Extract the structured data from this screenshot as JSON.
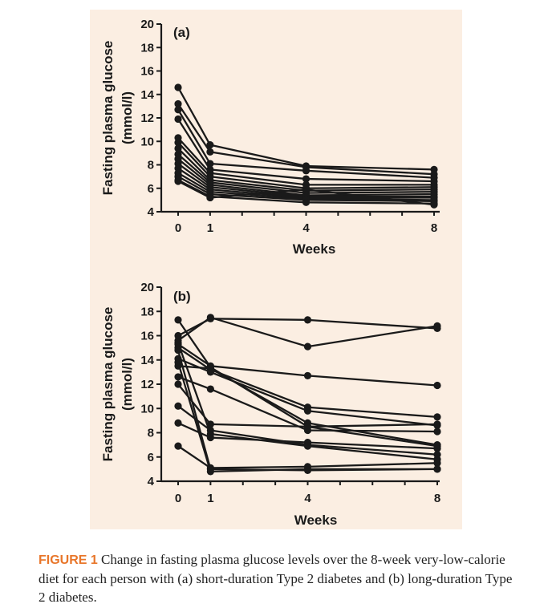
{
  "caption": {
    "label": "FIGURE 1",
    "text": "Change in fasting plasma glucose levels over the 8-week very-low-calorie diet for each person with (a) short-duration Type 2 diabetes and (b) long-duration Type 2 diabetes."
  },
  "chart_data": [
    {
      "type": "line",
      "panel_label": "(a)",
      "ylabel": [
        "Fasting plasma glucose",
        "(mmol/l)"
      ],
      "xlabel": "Weeks",
      "x": [
        0,
        1,
        4,
        8
      ],
      "xticks": [
        0,
        1,
        4,
        8
      ],
      "ylim": [
        4,
        20
      ],
      "yticks": [
        4,
        6,
        8,
        10,
        12,
        14,
        16,
        18,
        20
      ],
      "grid": false,
      "marker_color": "#1a1a1a",
      "series": [
        {
          "values": [
            14.6,
            9.7,
            7.9,
            7.6
          ]
        },
        {
          "values": [
            13.2,
            9.1,
            7.8,
            7.2
          ]
        },
        {
          "values": [
            12.7,
            8.1,
            7.5,
            6.9
          ]
        },
        {
          "values": [
            11.9,
            7.6,
            6.8,
            6.6
          ]
        },
        {
          "values": [
            10.3,
            7.3,
            6.3,
            6.3
          ]
        },
        {
          "values": [
            9.9,
            7.0,
            6.0,
            6.1
          ]
        },
        {
          "values": [
            9.4,
            6.7,
            5.8,
            5.9
          ]
        },
        {
          "values": [
            8.9,
            6.5,
            5.6,
            5.7
          ]
        },
        {
          "values": [
            8.5,
            6.3,
            5.4,
            5.5
          ]
        },
        {
          "values": [
            8.1,
            6.1,
            5.3,
            5.3
          ]
        },
        {
          "values": [
            7.7,
            5.9,
            5.2,
            5.2
          ]
        },
        {
          "values": [
            7.3,
            5.7,
            5.1,
            5.0
          ]
        },
        {
          "values": [
            7.0,
            5.5,
            5.0,
            4.9
          ]
        },
        {
          "values": [
            6.7,
            5.3,
            4.8,
            4.7
          ]
        },
        {
          "values": [
            6.6,
            5.2,
            5.9,
            4.6
          ]
        }
      ]
    },
    {
      "type": "line",
      "panel_label": "(b)",
      "ylabel": [
        "Fasting plasma glucose",
        "(mmol/l)"
      ],
      "xlabel": "Weeks",
      "x": [
        0,
        1,
        4,
        8
      ],
      "xticks": [
        0,
        1,
        4,
        8
      ],
      "ylim": [
        4,
        20
      ],
      "yticks": [
        4,
        6,
        8,
        10,
        12,
        14,
        16,
        18,
        20
      ],
      "grid": false,
      "marker_color": "#1a1a1a",
      "series": [
        {
          "values": [
            17.3,
            13.4,
            8.5,
            6.9
          ]
        },
        {
          "values": [
            16.0,
            17.4,
            17.3,
            16.6
          ]
        },
        {
          "values": [
            15.6,
            17.5,
            15.1,
            16.8
          ]
        },
        {
          "values": [
            15.3,
            13.5,
            12.7,
            11.9
          ]
        },
        {
          "values": [
            15.0,
            13.2,
            10.1,
            9.3
          ]
        },
        {
          "values": [
            14.1,
            13.0,
            9.8,
            8.6
          ]
        },
        {
          "values": [
            13.5,
            13.3,
            8.8,
            7.0
          ]
        },
        {
          "values": [
            12.6,
            11.6,
            8.2,
            8.1
          ]
        },
        {
          "values": [
            12.0,
            8.7,
            8.5,
            8.7
          ]
        },
        {
          "values": [
            10.2,
            8.2,
            7.0,
            6.2
          ]
        },
        {
          "values": [
            8.8,
            7.6,
            7.2,
            6.7
          ]
        },
        {
          "values": [
            6.9,
            5.1,
            5.2,
            5.5
          ]
        },
        {
          "values": [
            15.4,
            7.9,
            6.9,
            5.8
          ]
        },
        {
          "values": [
            14.8,
            5.0,
            4.9,
            5.0
          ]
        },
        {
          "values": [
            13.8,
            4.8,
            5.0,
            5.0
          ]
        }
      ]
    }
  ]
}
